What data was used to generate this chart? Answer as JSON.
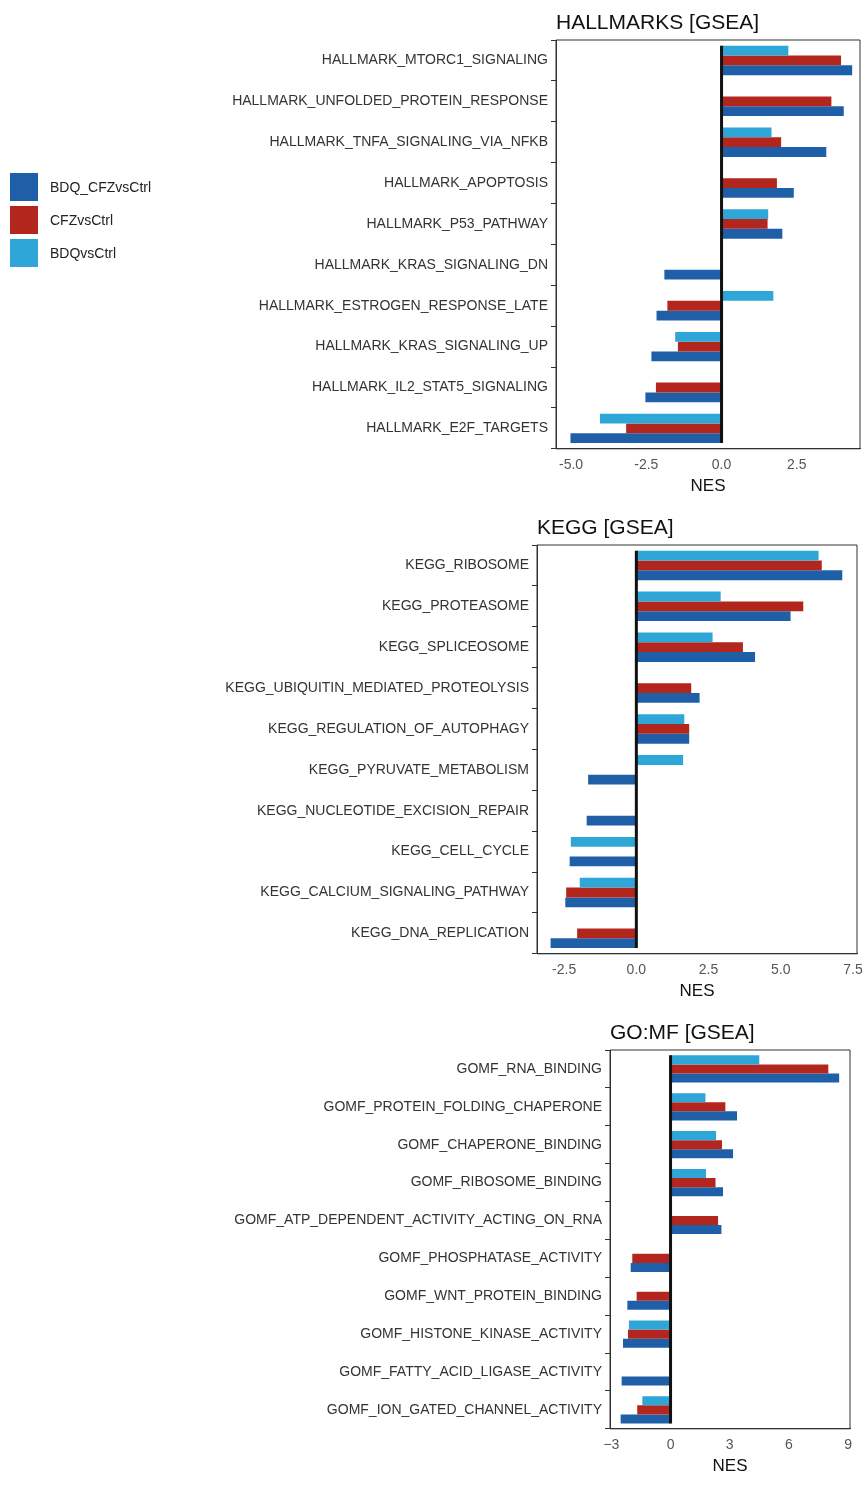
{
  "chart_data": [
    {
      "type": "bar",
      "orientation": "horizontal",
      "title": "HALLMARKS [GSEA]",
      "xlabel": "NES",
      "legend": "left",
      "categories": [
        "HALLMARK_MTORC1_SIGNALING",
        "HALLMARK_UNFOLDED_PROTEIN_RESPONSE",
        "HALLMARK_TNFA_SIGNALING_VIA_NFKB",
        "HALLMARK_APOPTOSIS",
        "HALLMARK_P53_PATHWAY",
        "HALLMARK_KRAS_SIGNALING_DN",
        "HALLMARK_ESTROGEN_RESPONSE_LATE",
        "HALLMARK_KRAS_SIGNALING_UP",
        "HALLMARK_IL2_STAT5_SIGNALING",
        "HALLMARK_E2F_TARGETS"
      ],
      "series": [
        {
          "name": "BDQ_CFZvsCtrl",
          "color": "#1f5fa8",
          "values": [
            4.34,
            4.06,
            3.48,
            2.4,
            2.02,
            -1.9,
            -2.16,
            -2.33,
            -2.53,
            -5.02
          ]
        },
        {
          "name": "CFZvsCtrl",
          "color": "#b3261e",
          "values": [
            3.97,
            3.65,
            1.98,
            1.84,
            1.53,
            null,
            -1.8,
            -1.45,
            -2.18,
            -3.17
          ]
        },
        {
          "name": "BDQvsCtrl",
          "color": "#2ea7d8",
          "values": [
            2.22,
            null,
            1.66,
            null,
            1.55,
            null,
            1.72,
            -1.54,
            null,
            -4.04
          ]
        }
      ],
      "xlim": [
        -5.5,
        4.6
      ],
      "xticks": [
        {
          "value": -5,
          "label": "-5.0"
        },
        {
          "value": -2.5,
          "label": "-2.5"
        },
        {
          "value": 0,
          "label": "0.0"
        },
        2.5
      ],
      "ref_lines": [
        {
          "axis": "x",
          "value": 0
        }
      ],
      "grid": false
    },
    {
      "type": "bar",
      "orientation": "horizontal",
      "title": "KEGG [GSEA]",
      "xlabel": "NES",
      "categories": [
        "KEGG_RIBOSOME",
        "KEGG_PROTEASOME",
        "KEGG_SPLICEOSOME",
        "KEGG_UBIQUITIN_MEDIATED_PROTEOLYSIS",
        "KEGG_REGULATION_OF_AUTOPHAGY",
        "KEGG_PYRUVATE_METABOLISM",
        "KEGG_NUCLEOTIDE_EXCISION_REPAIR",
        "KEGG_CELL_CYCLE",
        "KEGG_CALCIUM_SIGNALING_PATHWAY",
        "KEGG_DNA_REPLICATION"
      ],
      "series": [
        {
          "color": "#1f5fa8",
          "values": [
            7.13,
            5.34,
            4.11,
            2.19,
            1.83,
            -1.67,
            -1.72,
            -2.31,
            -2.46,
            -2.97
          ]
        },
        {
          "color": "#b3261e",
          "values": [
            6.42,
            5.78,
            3.69,
            1.9,
            1.83,
            null,
            null,
            null,
            -2.43,
            -2.05
          ]
        },
        {
          "color": "#2ea7d8",
          "values": [
            6.31,
            2.92,
            2.64,
            null,
            1.66,
            1.62,
            null,
            -2.27,
            -1.96,
            null
          ]
        }
      ],
      "xlim": [
        -3.44,
        7.64
      ],
      "xticks": [
        {
          "value": -2.5,
          "label": "-2.5"
        },
        {
          "value": 0,
          "label": "0.0"
        },
        2.5,
        {
          "value": 5,
          "label": "5.0"
        },
        7.5
      ],
      "ref_lines": [
        {
          "axis": "x",
          "value": 0
        }
      ],
      "grid": false
    },
    {
      "type": "bar",
      "orientation": "horizontal",
      "title": "GO:MF [GSEA]",
      "xlabel": "NES",
      "categories": [
        "GOMF_RNA_BINDING",
        "GOMF_PROTEIN_FOLDING_CHAPERONE",
        "GOMF_CHAPERONE_BINDING",
        "GOMF_RIBOSOME_BINDING",
        "GOMF_ATP_DEPENDENT_ACTIVITY_ACTING_ON_RNA",
        "GOMF_PHOSPHATASE_ACTIVITY",
        "GOMF_WNT_PROTEIN_BINDING",
        "GOMF_HISTONE_KINASE_ACTIVITY",
        "GOMF_FATTY_ACID_LIGASE_ACTIVITY",
        "GOMF_ION_GATED_CHANNEL_ACTIVITY"
      ],
      "series": [
        {
          "color": "#1f5fa8",
          "values": [
            8.55,
            3.37,
            3.17,
            2.66,
            2.58,
            -2.02,
            -2.19,
            -2.41,
            -2.48,
            -2.53
          ]
        },
        {
          "color": "#b3261e",
          "values": [
            8.0,
            2.78,
            2.61,
            2.28,
            2.41,
            -1.94,
            -1.72,
            -2.16,
            null,
            -1.69
          ]
        },
        {
          "color": "#2ea7d8",
          "values": [
            4.5,
            1.77,
            2.31,
            1.8,
            null,
            null,
            null,
            -2.11,
            null,
            -1.43
          ]
        }
      ],
      "xlim": [
        -3.07,
        9.1
      ],
      "xticks": [
        {
          "value": -3,
          "label": "−3"
        },
        0,
        3,
        6,
        9
      ],
      "ref_lines": [
        {
          "axis": "x",
          "value": 0
        }
      ],
      "grid": false
    }
  ]
}
